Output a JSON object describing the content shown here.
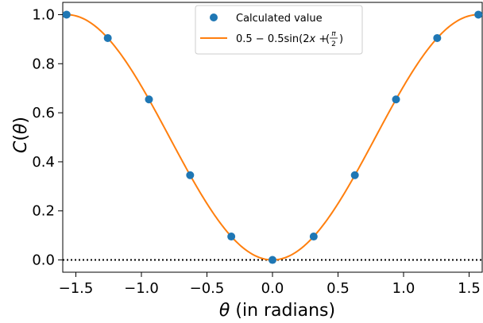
{
  "chart_data": {
    "type": "scatter",
    "xlabel": "θ (in radians)",
    "ylabel": "C(θ)",
    "xlim": [
      -1.6,
      1.6
    ],
    "ylim": [
      -0.05,
      1.05
    ],
    "xticks": [
      -1.5,
      -1.0,
      -0.5,
      0.0,
      0.5,
      1.0,
      1.5
    ],
    "xtick_labels": [
      "−1.5",
      "−1.0",
      "−0.5",
      "0.0",
      "0.5",
      "1.0",
      "1.5"
    ],
    "yticks": [
      0.0,
      0.2,
      0.4,
      0.6,
      0.8,
      1.0
    ],
    "ytick_labels": [
      "0.0",
      "0.2",
      "0.4",
      "0.6",
      "0.8",
      "1.0"
    ],
    "legend_position": "top-center",
    "colors": {
      "points": "#1f77b4",
      "curve": "#ff7f0e",
      "baseline": "#000000"
    },
    "series": [
      {
        "name": "Calculated value",
        "kind": "points",
        "x": [
          -1.5708,
          -1.2566,
          -0.9425,
          -0.6283,
          -0.3142,
          0.0,
          0.3142,
          0.6283,
          0.9425,
          1.2566,
          1.5708
        ],
        "y": [
          1.0,
          0.9045,
          0.6545,
          0.3455,
          0.0955,
          0.0,
          0.0955,
          0.3455,
          0.6545,
          0.9045,
          1.0
        ]
      },
      {
        "name": "0.5 − 0.5sin(2x + π/2)",
        "kind": "curve",
        "formula": "0.5 - 0.5*sin(2x + pi/2)",
        "x_range": [
          -1.5708,
          1.5708
        ]
      }
    ],
    "reference_lines": [
      {
        "y": 0.0,
        "style": "dotted"
      }
    ]
  }
}
